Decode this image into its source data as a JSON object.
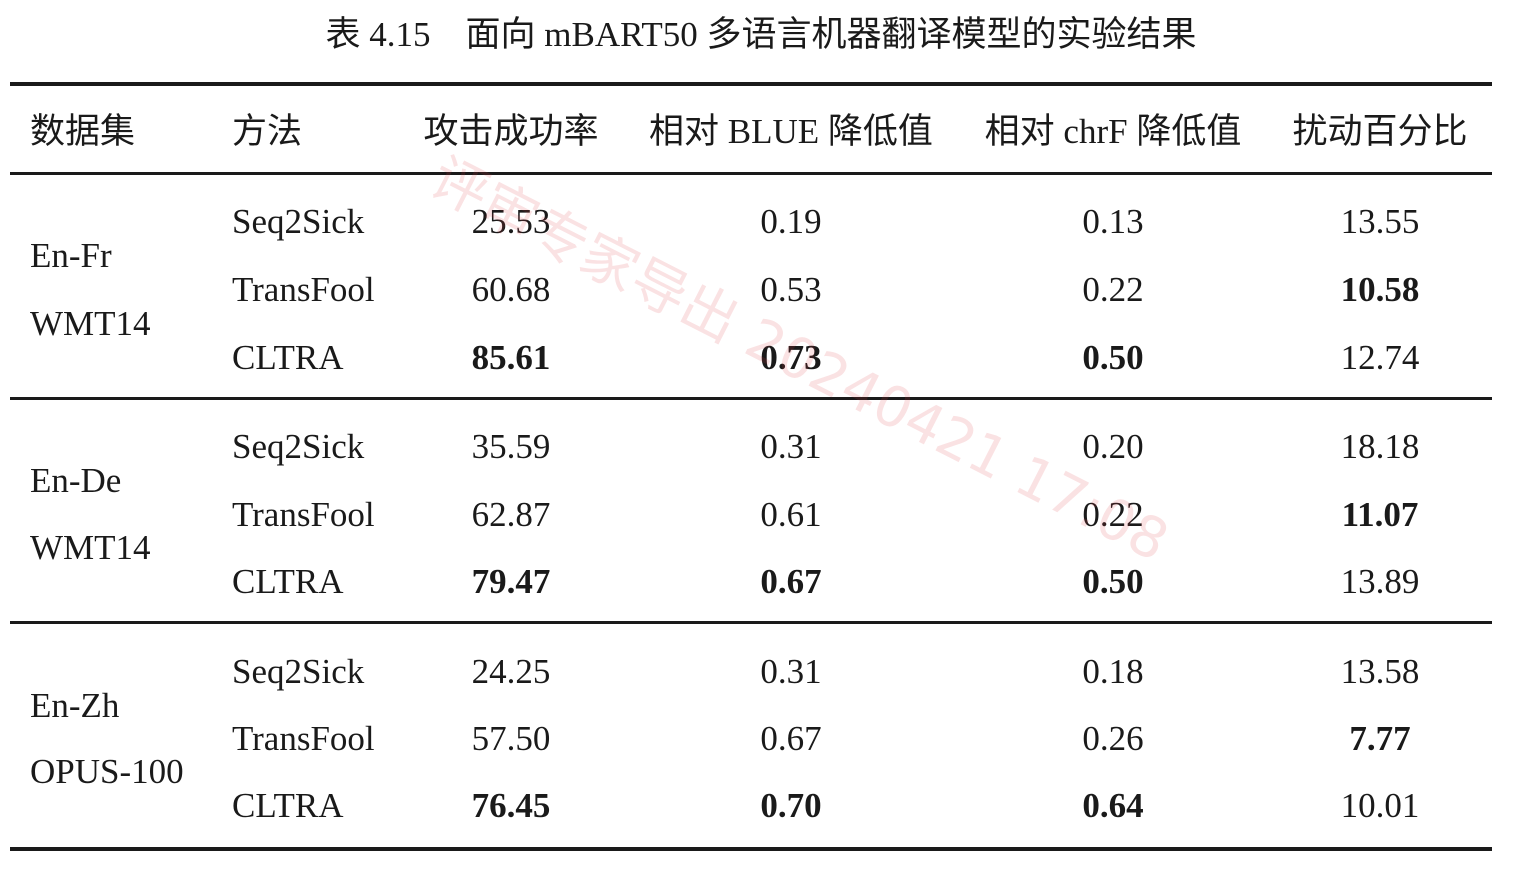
{
  "caption": "表 4.15    面向 mBART50 多语言机器翻译模型的实验结果",
  "headers": [
    "数据集",
    "方法",
    "攻击成功率",
    "相对 BLUE 降低值",
    "相对 chrF 降低值",
    "扰动百分比"
  ],
  "groups": [
    {
      "dataset_line1": "En-Fr",
      "dataset_line2": "WMT14",
      "rows": [
        {
          "method": "Seq2Sick",
          "asr": "25.53",
          "bleu": "0.19",
          "chrf": "0.13",
          "perturb": "13.55"
        },
        {
          "method": "TransFool",
          "asr": "60.68",
          "bleu": "0.53",
          "chrf": "0.22",
          "perturb": "10.58"
        },
        {
          "method": "CLTRA",
          "asr": "85.61",
          "bleu": "0.73",
          "chrf": "0.50",
          "perturb": "12.74"
        }
      ]
    },
    {
      "dataset_line1": "En-De",
      "dataset_line2": "WMT14",
      "rows": [
        {
          "method": "Seq2Sick",
          "asr": "35.59",
          "bleu": "0.31",
          "chrf": "0.20",
          "perturb": "18.18"
        },
        {
          "method": "TransFool",
          "asr": "62.87",
          "bleu": "0.61",
          "chrf": "0.22",
          "perturb": "11.07"
        },
        {
          "method": "CLTRA",
          "asr": "79.47",
          "bleu": "0.67",
          "chrf": "0.50",
          "perturb": "13.89"
        }
      ]
    },
    {
      "dataset_line1": "En-Zh",
      "dataset_line2": "OPUS-100",
      "rows": [
        {
          "method": "Seq2Sick",
          "asr": "24.25",
          "bleu": "0.31",
          "chrf": "0.18",
          "perturb": "13.58"
        },
        {
          "method": "TransFool",
          "asr": "57.50",
          "bleu": "0.67",
          "chrf": "0.26",
          "perturb": "7.77"
        },
        {
          "method": "CLTRA",
          "asr": "76.45",
          "bleu": "0.70",
          "chrf": "0.64",
          "perturb": "10.01"
        }
      ]
    }
  ],
  "watermark": "评审专家导出 20240421 17:08"
}
